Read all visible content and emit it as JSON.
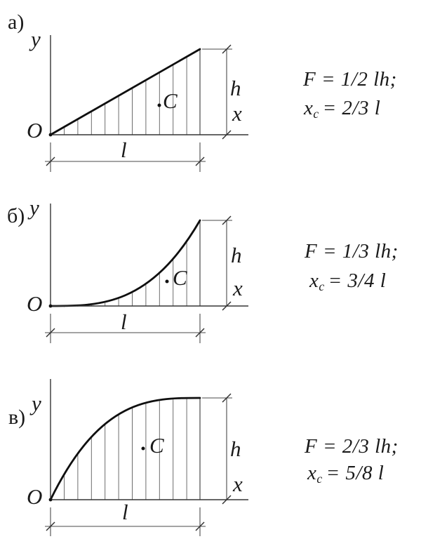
{
  "figure": {
    "description_colors": {
      "ink": "#1a1a1a",
      "background": "#ffffff"
    },
    "panels": [
      {
        "id": "a",
        "panel_label": "а)",
        "y_axis_label": "y",
        "x_axis_label": "x",
        "origin_label": "O",
        "height_label": "h",
        "length_label": "l",
        "centroid_label": "C",
        "curve_type": "straight-line-triangle",
        "formula_area": "F = 1/2 lh;",
        "formula_centroid_base": "x",
        "formula_centroid_sub": "c",
        "formula_centroid_value": "= 2/3 l"
      },
      {
        "id": "b",
        "panel_label": "б)",
        "y_axis_label": "y",
        "x_axis_label": "x",
        "origin_label": "O",
        "height_label": "h",
        "length_label": "l",
        "centroid_label": "C",
        "curve_type": "concave-parabola",
        "formula_area": "F = 1/3 lh;",
        "formula_centroid_base": "x",
        "formula_centroid_sub": "c",
        "formula_centroid_value": "= 3/4 l"
      },
      {
        "id": "c",
        "panel_label": "в)",
        "y_axis_label": "y",
        "x_axis_label": "x",
        "origin_label": "O",
        "height_label": "h",
        "length_label": "l",
        "centroid_label": "C",
        "curve_type": "convex-parabola",
        "formula_area": "F = 2/3 lh;",
        "formula_centroid_base": "x",
        "formula_centroid_sub": "c",
        "formula_centroid_value": "= 5/8 l"
      }
    ]
  }
}
